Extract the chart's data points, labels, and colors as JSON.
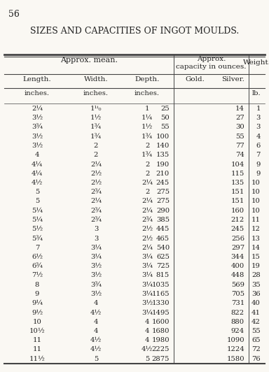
{
  "page_number": "56",
  "title": "SIZES AND CAPACITIES OF INGOT MOULDS.",
  "col_group1_label": "Approx. mean.",
  "col_group2_label": "Approx.\ncapacity in ounces.",
  "col_group3_label": "Weight.",
  "sub_headers": [
    "Length.",
    "Width.",
    "Depth.",
    "Gold.",
    "Silver.",
    ""
  ],
  "units": [
    "inches.",
    "inches.",
    "inches.",
    "",
    "",
    "lb."
  ],
  "rows": [
    [
      "2¼",
      "1¹ⁱ₀",
      "1",
      "25",
      "14",
      "1"
    ],
    [
      "3½",
      "1½",
      "1¼",
      "50",
      "27",
      "3"
    ],
    [
      "3¾",
      "1¾",
      "1½",
      "55",
      "30",
      "3"
    ],
    [
      "3½",
      "1¾",
      "1¾",
      "100",
      "55",
      "4"
    ],
    [
      "3½",
      "2",
      "2",
      "140",
      "77",
      "6"
    ],
    [
      "4",
      "2",
      "1¾",
      "135",
      "74",
      "7"
    ],
    [
      "4¼",
      "2¼",
      "2",
      "190",
      "104",
      "9"
    ],
    [
      "4¼",
      "2½",
      "2",
      "210",
      "115",
      "9"
    ],
    [
      "4½",
      "2½",
      "2¼",
      "245",
      "135",
      "10"
    ],
    [
      "5",
      "2¾",
      "2",
      "275",
      "151",
      "10"
    ],
    [
      "5",
      "2¼",
      "2¼",
      "275",
      "151",
      "10"
    ],
    [
      "5¼",
      "2¾",
      "2¼",
      "290",
      "160",
      "10"
    ],
    [
      "5¼",
      "2¾",
      "2¾",
      "385",
      "212",
      "11"
    ],
    [
      "5½",
      "3",
      "2½",
      "445",
      "245",
      "12"
    ],
    [
      "5¾",
      "3",
      "2½",
      "465",
      "256",
      "13"
    ],
    [
      "7",
      "3¼",
      "2¼",
      "540",
      "297",
      "14"
    ],
    [
      "6½",
      "3¼",
      "3¼",
      "625",
      "344",
      "15"
    ],
    [
      "6¾",
      "3½",
      "3¼",
      "725",
      "400",
      "19"
    ],
    [
      "7½",
      "3½",
      "3¼",
      "815",
      "448",
      "28"
    ],
    [
      "8",
      "3¾",
      "3¼",
      "1035",
      "569",
      "35"
    ],
    [
      "9",
      "3½",
      "3¼",
      "1165",
      "705",
      "36"
    ],
    [
      "9¼",
      "4",
      "3½",
      "1330",
      "731",
      "40"
    ],
    [
      "9½",
      "4½",
      "3¼",
      "1495",
      "822",
      "41"
    ],
    [
      "10",
      "4",
      "4",
      "1600",
      "880",
      "42"
    ],
    [
      "10½",
      "4",
      "4",
      "1680",
      "924",
      "55"
    ],
    [
      "11",
      "4½",
      "4",
      "1980",
      "1090",
      "65"
    ],
    [
      "11",
      "4½",
      "4½",
      "2225",
      "1224",
      "72"
    ],
    [
      "11½",
      "5",
      "5",
      "2875",
      "1580",
      "76"
    ]
  ],
  "bg_color": "#faf8f3",
  "text_color": "#222222",
  "line_color": "#444444",
  "font_size": 7.2,
  "header_font_size": 8.0,
  "title_font_size": 9.0
}
